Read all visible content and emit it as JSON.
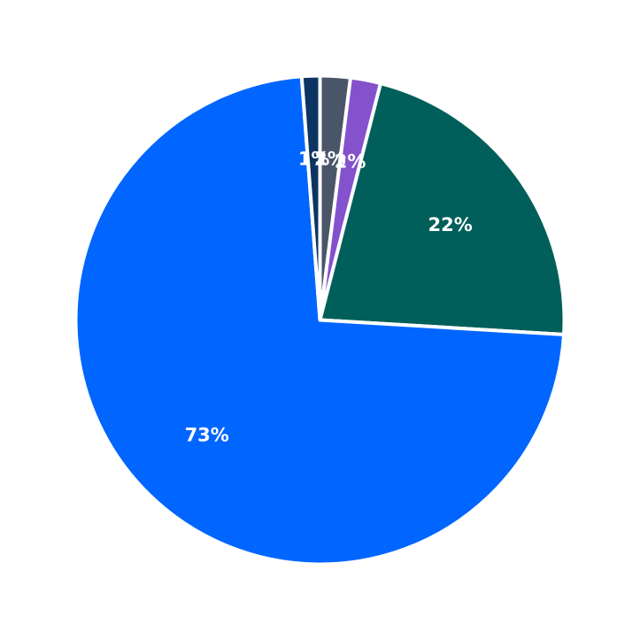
{
  "chart_data": {
    "type": "pie",
    "start_angle_deg": 90,
    "direction": "clockwise",
    "slices": [
      {
        "label": "2%",
        "value": 2.0,
        "color": "#4a5568"
      },
      {
        "label": "2%",
        "value": 2.0,
        "color": "#8352cc"
      },
      {
        "label": "22%",
        "value": 22.0,
        "color": "#005f5a"
      },
      {
        "label": "73%",
        "value": 73.0,
        "color": "#0066ff"
      },
      {
        "label": "1%",
        "value": 1.2,
        "color": "#0d3562"
      }
    ],
    "title": "",
    "legend": "none"
  }
}
